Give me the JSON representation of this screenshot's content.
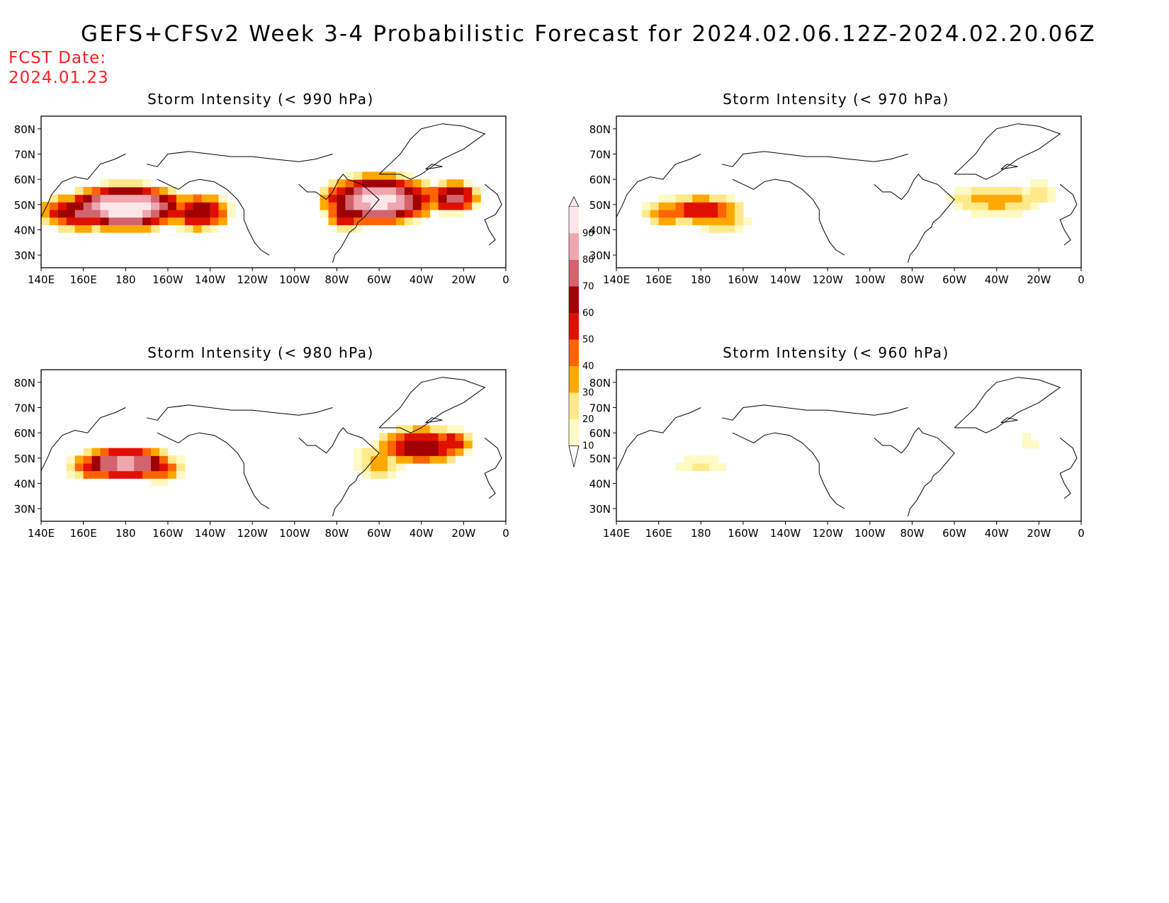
{
  "title": "GEFS+CFSv2 Week 3-4 Probabilistic Forecast for 2024.02.06.12Z-2024.02.20.06Z",
  "fcst_date_label": "FCST Date:",
  "fcst_date_value": "2024.01.23",
  "lon_ticks": [
    "140E",
    "160E",
    "180",
    "160W",
    "140W",
    "120W",
    "100W",
    "80W",
    "60W",
    "40W",
    "20W",
    "0"
  ],
  "lat_ticks": [
    "80N",
    "70N",
    "60N",
    "50N",
    "40N",
    "30N"
  ],
  "panels": [
    {
      "id": "p990",
      "title": "Storm Intensity (< 990 hPa)"
    },
    {
      "id": "p970",
      "title": "Storm Intensity (< 970 hPa)"
    },
    {
      "id": "p980",
      "title": "Storm Intensity (< 980 hPa)"
    },
    {
      "id": "p960",
      "title": "Storm Intensity (< 960 hPa)"
    }
  ],
  "colorbar": {
    "levels": [
      "10",
      "20",
      "30",
      "40",
      "50",
      "60",
      "70",
      "80",
      "90"
    ],
    "colors": [
      "#fff9c4",
      "#ffe98a",
      "#ffa800",
      "#ff6400",
      "#e01000",
      "#a00000",
      "#d2646e",
      "#f0a6ae",
      "#fde6ea"
    ]
  }
}
